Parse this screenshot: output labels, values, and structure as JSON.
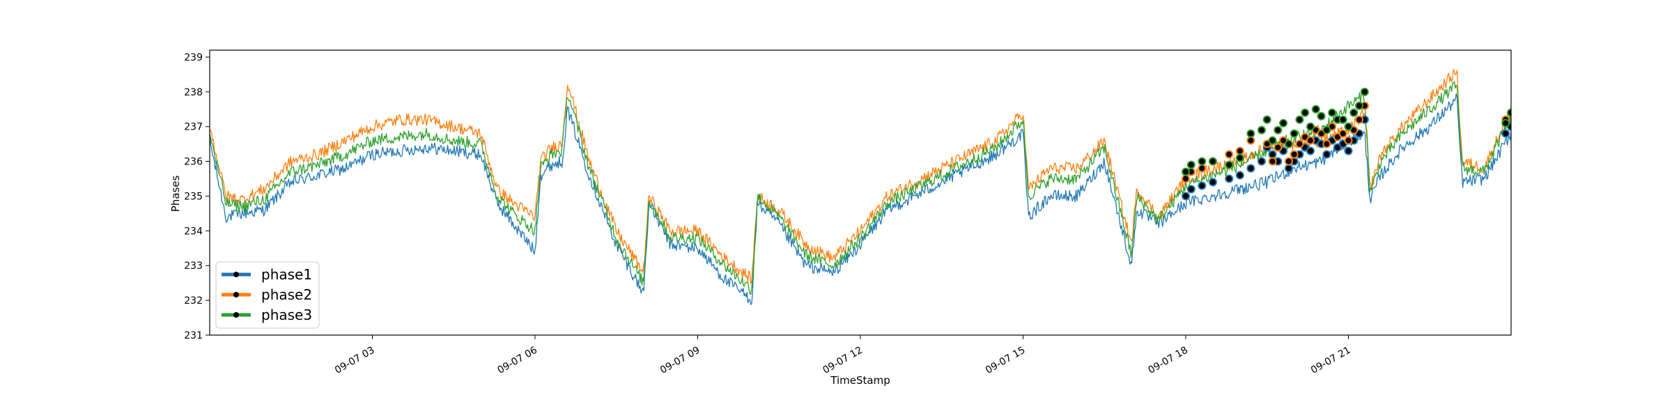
{
  "chart_data": {
    "type": "line",
    "title": "",
    "xlabel": "TimeStamp",
    "ylabel": "Phases",
    "xlim": [
      "09-07 00:00",
      "24:00"
    ],
    "ylim": [
      231,
      239.2
    ],
    "x_ticks": [
      {
        "label": "09-07 03",
        "hour": 3
      },
      {
        "label": "09-07 06",
        "hour": 6
      },
      {
        "label": "09-07 09",
        "hour": 9
      },
      {
        "label": "09-07 12",
        "hour": 12
      },
      {
        "label": "09-07 15",
        "hour": 15
      },
      {
        "label": "09-07 18",
        "hour": 18
      },
      {
        "label": "09-07 21",
        "hour": 21
      }
    ],
    "y_ticks": [
      231,
      232,
      233,
      234,
      235,
      236,
      237,
      238,
      239
    ],
    "grid": false,
    "legend_position": "lower-left",
    "colors": {
      "phase1": "#1f77b4",
      "phase2": "#ff7f0e",
      "phase3": "#2ca02c",
      "marker": "#000000"
    },
    "series": [
      {
        "name": "phase1",
        "color": "#1f77b4",
        "hours": [
          0.0,
          0.3,
          0.6,
          1.0,
          1.5,
          2.0,
          2.5,
          3.0,
          3.5,
          4.0,
          4.5,
          5.0,
          5.3,
          5.6,
          6.0,
          6.1,
          6.3,
          6.5,
          6.6,
          7.0,
          7.5,
          8.0,
          8.1,
          8.5,
          9.0,
          9.5,
          10.0,
          10.1,
          10.5,
          11.0,
          11.5,
          12.0,
          12.5,
          13.0,
          13.5,
          14.0,
          14.5,
          15.0,
          15.1,
          15.5,
          16.0,
          16.5,
          17.0,
          17.1,
          17.5,
          18.0,
          18.5,
          19.0,
          19.5,
          20.0,
          20.5,
          21.0,
          21.3,
          21.4,
          21.6,
          22.0,
          22.5,
          23.0,
          23.1,
          23.5,
          24.0
        ],
        "values": [
          236.6,
          234.4,
          234.5,
          234.6,
          235.4,
          235.6,
          235.8,
          236.2,
          236.3,
          236.4,
          236.3,
          236.2,
          234.8,
          234.2,
          233.4,
          235.6,
          235.9,
          236.0,
          237.5,
          235.6,
          233.6,
          232.2,
          234.8,
          233.6,
          233.5,
          232.6,
          232.0,
          234.8,
          234.2,
          233.0,
          232.8,
          233.6,
          234.6,
          235.0,
          235.4,
          235.8,
          236.2,
          236.8,
          234.4,
          235.0,
          235.0,
          236.0,
          233.0,
          234.6,
          234.2,
          234.8,
          235.0,
          235.2,
          235.4,
          235.8,
          236.0,
          236.6,
          236.8,
          234.9,
          235.6,
          236.4,
          237.0,
          237.8,
          235.4,
          235.5,
          236.8
        ]
      },
      {
        "name": "phase2",
        "color": "#ff7f0e",
        "hours": [
          0.0,
          0.3,
          0.6,
          1.0,
          1.5,
          2.0,
          2.5,
          3.0,
          3.5,
          4.0,
          4.5,
          5.0,
          5.3,
          5.6,
          6.0,
          6.1,
          6.3,
          6.5,
          6.6,
          7.0,
          7.5,
          8.0,
          8.1,
          8.5,
          9.0,
          9.5,
          10.0,
          10.1,
          10.5,
          11.0,
          11.5,
          12.0,
          12.5,
          13.0,
          13.5,
          14.0,
          14.5,
          15.0,
          15.1,
          15.5,
          16.0,
          16.5,
          17.0,
          17.1,
          17.5,
          18.0,
          18.5,
          19.0,
          19.5,
          20.0,
          20.5,
          21.0,
          21.3,
          21.4,
          21.6,
          22.0,
          22.5,
          23.0,
          23.1,
          23.5,
          24.0
        ],
        "values": [
          237.0,
          235.0,
          234.9,
          235.2,
          236.0,
          236.2,
          236.6,
          237.0,
          237.2,
          237.2,
          237.0,
          236.8,
          235.2,
          234.8,
          234.4,
          236.0,
          236.4,
          236.5,
          238.3,
          236.0,
          234.0,
          232.8,
          235.0,
          234.0,
          234.0,
          233.2,
          232.6,
          235.0,
          234.6,
          233.6,
          233.2,
          234.0,
          235.0,
          235.4,
          235.8,
          236.2,
          236.6,
          237.4,
          235.2,
          235.8,
          235.8,
          236.6,
          233.6,
          235.2,
          234.4,
          235.5,
          235.8,
          236.0,
          236.4,
          236.5,
          236.6,
          236.9,
          237.4,
          235.2,
          236.2,
          237.0,
          237.8,
          238.6,
          236.0,
          235.8,
          237.5
        ]
      },
      {
        "name": "phase3",
        "color": "#2ca02c",
        "hours": [
          0.0,
          0.3,
          0.6,
          1.0,
          1.5,
          2.0,
          2.5,
          3.0,
          3.5,
          4.0,
          4.5,
          5.0,
          5.3,
          5.6,
          6.0,
          6.1,
          6.3,
          6.5,
          6.6,
          7.0,
          7.5,
          8.0,
          8.1,
          8.5,
          9.0,
          9.5,
          10.0,
          10.1,
          10.5,
          11.0,
          11.5,
          12.0,
          12.5,
          13.0,
          13.5,
          14.0,
          14.5,
          15.0,
          15.1,
          15.5,
          16.0,
          16.5,
          17.0,
          17.1,
          17.5,
          18.0,
          18.5,
          19.0,
          19.5,
          20.0,
          20.5,
          21.0,
          21.3,
          21.4,
          21.6,
          22.0,
          22.5,
          23.0,
          23.1,
          23.5,
          24.0
        ],
        "values": [
          236.8,
          234.8,
          234.7,
          234.9,
          235.7,
          235.9,
          236.2,
          236.6,
          236.7,
          236.8,
          236.6,
          236.5,
          235.0,
          234.5,
          234.0,
          235.8,
          236.2,
          236.3,
          238.0,
          235.8,
          233.8,
          232.5,
          234.9,
          233.8,
          233.8,
          233.0,
          232.3,
          235.0,
          234.4,
          233.3,
          233.0,
          233.8,
          234.8,
          235.2,
          235.6,
          236.0,
          236.4,
          237.2,
          235.0,
          235.5,
          235.5,
          236.4,
          233.3,
          235.0,
          234.3,
          235.3,
          235.6,
          235.9,
          236.3,
          236.7,
          236.9,
          237.6,
          237.9,
          235.1,
          236.0,
          236.8,
          237.5,
          238.2,
          235.8,
          235.7,
          237.3
        ]
      }
    ],
    "markers": {
      "hours": [
        18.0,
        18.1,
        18.3,
        18.5,
        18.8,
        19.0,
        19.2,
        19.4,
        19.5,
        19.6,
        19.7,
        19.8,
        19.9,
        20.0,
        20.1,
        20.2,
        20.3,
        20.4,
        20.5,
        20.6,
        20.7,
        20.8,
        20.9,
        21.0,
        21.1,
        21.2,
        21.3,
        23.9,
        24.0
      ],
      "phase1": [
        235.0,
        235.2,
        235.3,
        235.4,
        235.5,
        235.6,
        235.8,
        236.0,
        236.4,
        236.2,
        236.0,
        236.3,
        235.8,
        236.0,
        236.2,
        236.4,
        236.3,
        236.6,
        236.5,
        236.2,
        236.6,
        236.4,
        236.5,
        236.3,
        236.6,
        236.8,
        237.2,
        236.8,
        237.0
      ],
      "phase2": [
        235.5,
        235.7,
        235.8,
        236.0,
        236.2,
        236.3,
        236.6,
        236.9,
        236.5,
        236.0,
        236.4,
        236.6,
        236.0,
        236.2,
        236.5,
        236.7,
        236.6,
        236.9,
        236.8,
        236.5,
        237.0,
        236.7,
        236.8,
        236.6,
        236.9,
        237.2,
        237.6,
        237.2,
        237.4
      ],
      "phase3": [
        235.7,
        235.9,
        236.0,
        236.0,
        235.9,
        236.1,
        236.8,
        236.9,
        237.2,
        236.6,
        236.9,
        237.1,
        236.5,
        236.8,
        237.2,
        237.4,
        237.0,
        237.5,
        237.3,
        236.9,
        237.4,
        237.2,
        237.2,
        237.0,
        237.4,
        237.6,
        238.0,
        237.1,
        237.4
      ]
    },
    "legend": [
      {
        "name": "phase1",
        "color": "#1f77b4"
      },
      {
        "name": "phase2",
        "color": "#ff7f0e"
      },
      {
        "name": "phase3",
        "color": "#2ca02c"
      }
    ]
  }
}
